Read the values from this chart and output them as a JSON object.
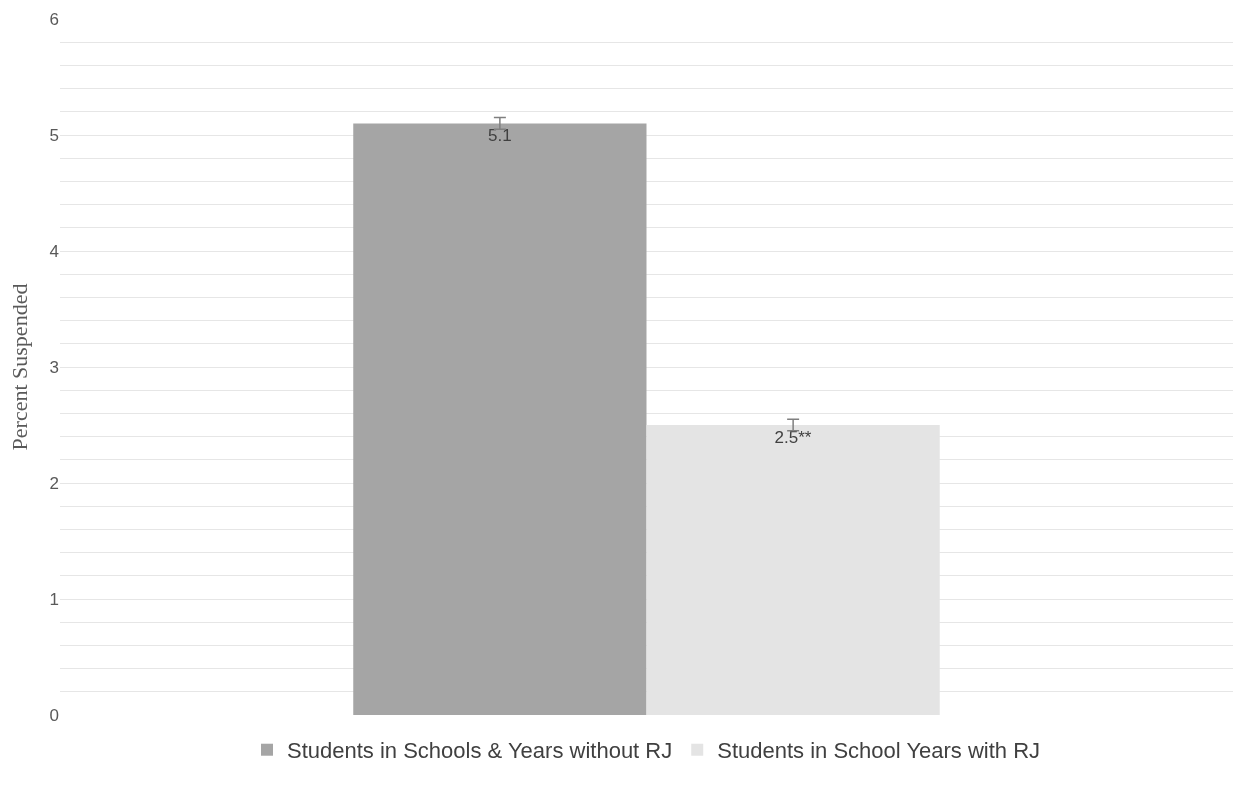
{
  "chart_data": {
    "type": "bar",
    "ylabel": "Percent Suspended",
    "categories": [
      null
    ],
    "series": [
      {
        "name": "Students in Schools & Years without RJ",
        "color": "#a5a5a5",
        "values": [
          5.1
        ],
        "errors": [
          0.05
        ],
        "value_labels": [
          "5.1"
        ]
      },
      {
        "name": "Students in School Years with RJ",
        "color": "#e4e4e4",
        "values": [
          2.5
        ],
        "errors": [
          0.05
        ],
        "value_labels": [
          "2.5**"
        ]
      }
    ],
    "ylim": [
      0,
      6
    ],
    "yticks": [
      0,
      {
        "value": 0.2,
        "label": null
      },
      {
        "value": 0.4,
        "label": null
      },
      {
        "value": 0.6,
        "label": null
      },
      {
        "value": 0.8,
        "label": null
      },
      1,
      {
        "value": 1.2,
        "label": null
      },
      {
        "value": 1.4,
        "label": null
      },
      {
        "value": 1.6,
        "label": null
      },
      {
        "value": 1.8,
        "label": null
      },
      2,
      {
        "value": 2.2,
        "label": null
      },
      {
        "value": 2.4,
        "label": null
      },
      {
        "value": 2.6,
        "label": null
      },
      {
        "value": 2.8,
        "label": null
      },
      3,
      {
        "value": 3.2,
        "label": null
      },
      {
        "value": 3.4,
        "label": null
      },
      {
        "value": 3.6,
        "label": null
      },
      {
        "value": 3.8,
        "label": null
      },
      4,
      {
        "value": 4.2,
        "label": null
      },
      {
        "value": 4.4,
        "label": null
      },
      {
        "value": 4.6,
        "label": null
      },
      {
        "value": 4.8,
        "label": null
      },
      5,
      {
        "value": 5.2,
        "label": null
      },
      {
        "value": 5.4,
        "label": null
      },
      {
        "value": 5.6,
        "label": null
      },
      {
        "value": 5.8,
        "label": null
      },
      6
    ],
    "grid": "y",
    "legend": "bottom"
  }
}
